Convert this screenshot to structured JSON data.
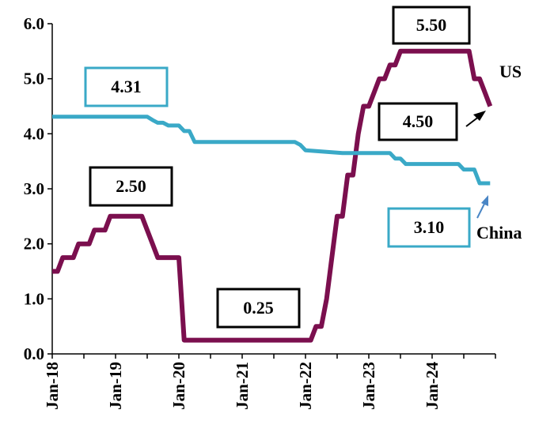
{
  "chart_data": {
    "type": "line",
    "title": "",
    "xlabel": "",
    "ylabel": "",
    "ylim": [
      0,
      6
    ],
    "y_ticks": [
      "0.0",
      "1.0",
      "2.0",
      "3.0",
      "4.0",
      "5.0",
      "6.0"
    ],
    "x_ticks": [
      "Jan-18",
      "Jan-19",
      "Jan-20",
      "Jan-21",
      "Jan-22",
      "Jan-23",
      "Jan-24"
    ],
    "x_range_months": "Jan-18 to Dec-24",
    "grid": false,
    "colors": {
      "US": "#7b0f4e",
      "China": "#3aa9c7"
    },
    "series_labels": {
      "us": "US",
      "china": "China"
    },
    "annotations": {
      "china_start": "4.31",
      "china_end": "3.10",
      "us_peak_2019": "2.50",
      "us_low": "0.25",
      "us_peak_2023": "5.50",
      "us_end": "4.50"
    },
    "series": [
      {
        "name": "US",
        "points": [
          [
            "2018-01",
            1.5
          ],
          [
            "2018-02",
            1.5
          ],
          [
            "2018-03",
            1.75
          ],
          [
            "2018-04",
            1.75
          ],
          [
            "2018-05",
            1.75
          ],
          [
            "2018-06",
            2.0
          ],
          [
            "2018-07",
            2.0
          ],
          [
            "2018-08",
            2.0
          ],
          [
            "2018-09",
            2.25
          ],
          [
            "2018-10",
            2.25
          ],
          [
            "2018-11",
            2.25
          ],
          [
            "2018-12",
            2.5
          ],
          [
            "2019-01",
            2.5
          ],
          [
            "2019-02",
            2.5
          ],
          [
            "2019-03",
            2.5
          ],
          [
            "2019-04",
            2.5
          ],
          [
            "2019-05",
            2.5
          ],
          [
            "2019-06",
            2.5
          ],
          [
            "2019-07",
            2.25
          ],
          [
            "2019-08",
            2.0
          ],
          [
            "2019-09",
            1.75
          ],
          [
            "2019-10",
            1.75
          ],
          [
            "2019-11",
            1.75
          ],
          [
            "2019-12",
            1.75
          ],
          [
            "2020-01",
            1.75
          ],
          [
            "2020-02",
            0.25
          ],
          [
            "2020-03",
            0.25
          ],
          [
            "2021-01",
            0.25
          ],
          [
            "2021-12",
            0.25
          ],
          [
            "2022-01",
            0.25
          ],
          [
            "2022-02",
            0.25
          ],
          [
            "2022-03",
            0.5
          ],
          [
            "2022-04",
            0.5
          ],
          [
            "2022-05",
            1.0
          ],
          [
            "2022-06",
            1.75
          ],
          [
            "2022-07",
            2.5
          ],
          [
            "2022-08",
            2.5
          ],
          [
            "2022-09",
            3.25
          ],
          [
            "2022-10",
            3.25
          ],
          [
            "2022-11",
            4.0
          ],
          [
            "2022-12",
            4.5
          ],
          [
            "2023-01",
            4.5
          ],
          [
            "2023-02",
            4.75
          ],
          [
            "2023-03",
            5.0
          ],
          [
            "2023-04",
            5.0
          ],
          [
            "2023-05",
            5.25
          ],
          [
            "2023-06",
            5.25
          ],
          [
            "2023-07",
            5.5
          ],
          [
            "2023-08",
            5.5
          ],
          [
            "2024-08",
            5.5
          ],
          [
            "2024-09",
            5.0
          ],
          [
            "2024-10",
            5.0
          ],
          [
            "2024-11",
            4.75
          ],
          [
            "2024-12",
            4.5
          ]
        ]
      },
      {
        "name": "China",
        "points": [
          [
            "2018-01",
            4.31
          ],
          [
            "2019-07",
            4.31
          ],
          [
            "2019-08",
            4.25
          ],
          [
            "2019-09",
            4.2
          ],
          [
            "2019-10",
            4.2
          ],
          [
            "2019-11",
            4.15
          ],
          [
            "2019-12",
            4.15
          ],
          [
            "2020-01",
            4.15
          ],
          [
            "2020-02",
            4.05
          ],
          [
            "2020-03",
            4.05
          ],
          [
            "2020-04",
            3.85
          ],
          [
            "2021-11",
            3.85
          ],
          [
            "2021-12",
            3.8
          ],
          [
            "2022-01",
            3.7
          ],
          [
            "2022-08",
            3.65
          ],
          [
            "2022-09",
            3.65
          ],
          [
            "2023-05",
            3.65
          ],
          [
            "2023-06",
            3.55
          ],
          [
            "2023-07",
            3.55
          ],
          [
            "2023-08",
            3.45
          ],
          [
            "2024-06",
            3.45
          ],
          [
            "2024-07",
            3.35
          ],
          [
            "2024-09",
            3.35
          ],
          [
            "2024-10",
            3.1
          ],
          [
            "2024-12",
            3.1
          ]
        ]
      }
    ]
  }
}
